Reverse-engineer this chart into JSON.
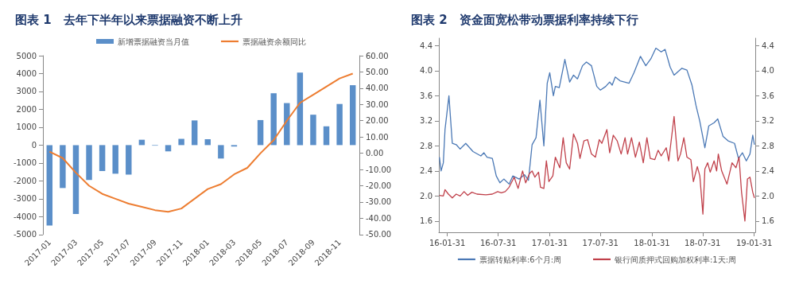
{
  "chart_data": [
    {
      "type": "bar",
      "title": "图表 1　去年下半年以来票据融资不断上升",
      "categories": [
        "2017-01",
        null,
        "2017-03",
        null,
        "2017-05",
        null,
        "2017-07",
        null,
        "2017-09",
        null,
        "2017-11",
        null,
        "2018-01",
        null,
        "2018-03",
        null,
        "2018-05",
        null,
        "2018-07",
        null,
        "2018-09",
        null,
        "2018-11",
        null
      ],
      "series": [
        {
          "name": "新增票据融资当月值",
          "color": "#5b8fc9",
          "values": [
            -4500,
            -2400,
            -3850,
            -1950,
            -1450,
            -1600,
            -1650,
            300,
            -30,
            -350,
            350,
            1380,
            330,
            -750,
            -80,
            0,
            1400,
            2900,
            2350,
            4050,
            1700,
            1050,
            2300,
            3350
          ]
        },
        {
          "name": "票据融资余额同比",
          "type": "line",
          "axis": "y2",
          "color": "#ed7d31",
          "values": [
            1,
            -3,
            -12,
            -20,
            -25,
            -28,
            -31,
            -33,
            -35,
            -36,
            -34,
            -28,
            -22,
            -19,
            -13,
            -9,
            0,
            8,
            20,
            31,
            36,
            41,
            46,
            49
          ]
        }
      ],
      "ylim": [
        -5000,
        5000
      ],
      "yticks": [
        -5000,
        -4000,
        -3000,
        -2000,
        -1000,
        0,
        1000,
        2000,
        3000,
        4000,
        5000
      ],
      "y2lim": [
        -50,
        60
      ],
      "y2ticks": [
        {
          "value": -50,
          "label": "-50.00"
        },
        {
          "value": -40,
          "label": "-40.00"
        },
        {
          "value": -30,
          "label": "-30.00"
        },
        {
          "value": -20,
          "label": "-20.00"
        },
        {
          "value": -10,
          "label": "-10.00"
        },
        {
          "value": 0,
          "label": "0.00"
        },
        {
          "value": 10,
          "label": "10.00"
        },
        {
          "value": 20,
          "label": "20.00"
        },
        {
          "value": 30,
          "label": "30.00"
        },
        {
          "value": 40,
          "label": "40.00"
        },
        {
          "value": 50,
          "label": "50.00"
        },
        {
          "value": 60,
          "label": "60.00"
        }
      ],
      "legend": "top",
      "grid": false,
      "marker": "none"
    },
    {
      "type": "line",
      "title": "图表 2　资金面宽松带动票据利率持续下行",
      "series": [
        {
          "name": "票据转贴利率:6个月:周",
          "color": "#4a78b5",
          "x": [
            "2016-01-03",
            "2016-01-09",
            "2016-01-17",
            "2016-01-23",
            "2016-02-06",
            "2016-02-18",
            "2016-03-03",
            "2016-03-17",
            "2016-04-06",
            "2016-05-02",
            "2016-05-30",
            "2016-06-10",
            "2016-06-21",
            "2016-07-10",
            "2016-07-24",
            "2016-08-06",
            "2016-08-20",
            "2016-09-08",
            "2016-09-21",
            "2016-10-14",
            "2016-11-02",
            "2016-11-16",
            "2016-11-29",
            "2016-12-13",
            "2016-12-27",
            "2017-01-10",
            "2017-01-22",
            "2017-01-31",
            "2017-02-13",
            "2017-02-20",
            "2017-03-06",
            "2017-03-26",
            "2017-04-12",
            "2017-04-26",
            "2017-05-10",
            "2017-05-28",
            "2017-06-11",
            "2017-06-29",
            "2017-07-18",
            "2017-07-31",
            "2017-08-19",
            "2017-09-02",
            "2017-09-11",
            "2017-09-22",
            "2017-10-09",
            "2017-11-10",
            "2017-11-28",
            "2017-12-21",
            "2018-01-09",
            "2018-01-27",
            "2018-02-14",
            "2018-03-05",
            "2018-03-19",
            "2018-04-06",
            "2018-04-20",
            "2018-05-18",
            "2018-06-05",
            "2018-06-23",
            "2018-07-07",
            "2018-07-21",
            "2018-08-08",
            "2018-08-22",
            "2018-09-10",
            "2018-09-23",
            "2018-10-12",
            "2018-10-30",
            "2018-11-22",
            "2018-12-06",
            "2018-12-20",
            "2019-01-03",
            "2019-01-16",
            "2019-01-26",
            "2019-02-01"
          ],
          "values": [
            2.62,
            2.4,
            2.53,
            3.06,
            3.6,
            2.84,
            2.82,
            2.75,
            2.84,
            2.71,
            2.64,
            2.69,
            2.62,
            2.6,
            2.32,
            2.21,
            2.27,
            2.19,
            2.32,
            2.27,
            2.34,
            2.25,
            2.82,
            2.93,
            3.53,
            2.8,
            3.8,
            3.97,
            3.6,
            3.75,
            3.73,
            4.18,
            3.82,
            3.93,
            3.87,
            4.08,
            4.14,
            4.08,
            3.75,
            3.69,
            3.75,
            3.82,
            3.77,
            3.9,
            3.84,
            3.8,
            3.97,
            4.23,
            4.08,
            4.19,
            4.36,
            4.3,
            4.34,
            4.06,
            3.93,
            4.04,
            4.01,
            3.77,
            3.45,
            3.19,
            2.77,
            3.12,
            3.17,
            3.23,
            2.95,
            2.88,
            2.84,
            2.6,
            2.69,
            2.56,
            2.67,
            2.97,
            2.82
          ]
        },
        {
          "name": "银行间质押式回购加权利率:1天:周",
          "color": "#c0404a",
          "x": [
            "2016-01-03",
            "2016-01-17",
            "2016-01-23",
            "2016-02-04",
            "2016-02-18",
            "2016-03-03",
            "2016-03-17",
            "2016-03-31",
            "2016-04-13",
            "2016-04-28",
            "2016-05-16",
            "2016-06-17",
            "2016-07-10",
            "2016-07-29",
            "2016-08-11",
            "2016-08-25",
            "2016-09-08",
            "2016-09-26",
            "2016-10-10",
            "2016-10-26",
            "2016-11-06",
            "2016-11-20",
            "2016-11-29",
            "2016-12-09",
            "2016-12-22",
            "2016-12-29",
            "2017-01-10",
            "2017-01-19",
            "2017-01-28",
            "2017-02-11",
            "2017-02-20",
            "2017-03-08",
            "2017-03-20",
            "2017-03-31",
            "2017-04-12",
            "2017-04-26",
            "2017-05-10",
            "2017-05-19",
            "2017-06-02",
            "2017-06-15",
            "2017-06-29",
            "2017-07-13",
            "2017-07-27",
            "2017-08-05",
            "2017-08-23",
            "2017-09-02",
            "2017-09-15",
            "2017-09-29",
            "2017-10-13",
            "2017-10-27",
            "2017-11-05",
            "2017-11-19",
            "2017-12-03",
            "2017-12-17",
            "2017-12-31",
            "2018-01-13",
            "2018-01-25",
            "2018-02-10",
            "2018-02-22",
            "2018-03-05",
            "2018-03-23",
            "2018-04-01",
            "2018-04-20",
            "2018-05-04",
            "2018-05-13",
            "2018-05-25",
            "2018-06-05",
            "2018-06-19",
            "2018-06-28",
            "2018-07-12",
            "2018-07-21",
            "2018-08-01",
            "2018-08-08",
            "2018-08-18",
            "2018-08-27",
            "2018-09-10",
            "2018-09-19",
            "2018-09-25",
            "2018-10-07",
            "2018-10-26",
            "2018-11-13",
            "2018-11-27",
            "2018-12-08",
            "2018-12-17",
            "2018-12-29",
            "2019-01-07",
            "2019-01-16",
            "2019-01-26",
            "2019-02-01"
          ],
          "values": [
            2.01,
            2.0,
            2.1,
            2.03,
            1.97,
            2.03,
            2.0,
            2.07,
            2.01,
            2.06,
            2.03,
            2.02,
            2.03,
            2.07,
            2.05,
            2.07,
            2.14,
            2.3,
            2.12,
            2.4,
            2.21,
            2.36,
            2.4,
            2.3,
            2.38,
            2.14,
            2.12,
            2.56,
            2.23,
            2.32,
            2.62,
            2.45,
            2.93,
            2.53,
            2.43,
            2.99,
            2.84,
            2.6,
            2.88,
            2.9,
            2.67,
            2.62,
            2.9,
            2.84,
            3.06,
            2.69,
            2.97,
            2.88,
            2.67,
            2.93,
            2.67,
            2.93,
            2.62,
            2.86,
            2.53,
            2.93,
            2.6,
            2.58,
            2.73,
            2.64,
            2.77,
            2.56,
            3.27,
            2.56,
            2.67,
            2.93,
            2.62,
            2.58,
            2.23,
            2.47,
            2.32,
            1.71,
            2.43,
            2.53,
            2.38,
            2.56,
            2.4,
            2.67,
            2.4,
            2.19,
            2.53,
            2.45,
            2.62,
            2.06,
            1.6,
            2.27,
            2.3,
            2.06,
            1.97
          ]
        }
      ],
      "xlim": [
        "2016-01-01",
        "2019-02-04"
      ],
      "xticks": [
        {
          "value": "2016-01-31",
          "label": "16-01-31"
        },
        {
          "value": "2016-07-31",
          "label": "16-07-31"
        },
        {
          "value": "2017-01-31",
          "label": "17-01-31"
        },
        {
          "value": "2017-07-31",
          "label": "17-07-31"
        },
        {
          "value": "2018-01-31",
          "label": "18-01-31"
        },
        {
          "value": "2018-07-31",
          "label": "18-07-31"
        },
        {
          "value": "2019-01-31",
          "label": "19-01-31"
        }
      ],
      "ylim": [
        1.42,
        4.52
      ],
      "yticks": [
        {
          "value": 1.6,
          "label": "1.6"
        },
        {
          "value": 2.0,
          "label": "2.0"
        },
        {
          "value": 2.4,
          "label": "2.4"
        },
        {
          "value": 2.8,
          "label": "2.8"
        },
        {
          "value": 3.2,
          "label": "3.2"
        },
        {
          "value": 3.6,
          "label": "3.6"
        },
        {
          "value": 4.0,
          "label": "4.0"
        },
        {
          "value": 4.4,
          "label": "4.4"
        }
      ],
      "y2lim": [
        1.42,
        4.52
      ],
      "y2ticks": [
        {
          "value": 1.6,
          "label": "1.6"
        },
        {
          "value": 2.0,
          "label": "2.0"
        },
        {
          "value": 2.4,
          "label": "2.4"
        },
        {
          "value": 2.8,
          "label": "2.8"
        },
        {
          "value": 3.2,
          "label": "3.2"
        },
        {
          "value": 3.6,
          "label": "3.6"
        },
        {
          "value": 4.0,
          "label": "4.0"
        },
        {
          "value": 4.4,
          "label": "4.4"
        }
      ],
      "legend": "bottom",
      "grid": false,
      "marker": "none"
    }
  ]
}
